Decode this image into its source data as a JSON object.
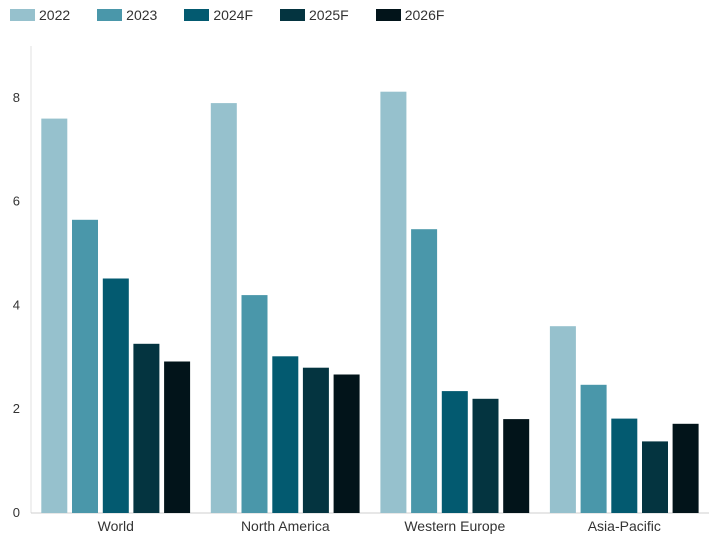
{
  "chart_data": {
    "type": "bar",
    "categories": [
      "World",
      "North America",
      "Western Europe",
      "Asia-Pacific"
    ],
    "series": [
      {
        "name": "2022",
        "color": "#96c1cd",
        "values": [
          7.6,
          7.9,
          8.12,
          3.6
        ]
      },
      {
        "name": "2023",
        "color": "#4a97aa",
        "values": [
          5.65,
          4.2,
          5.47,
          2.47
        ]
      },
      {
        "name": "2024F",
        "color": "#035a70",
        "values": [
          4.52,
          3.02,
          2.35,
          1.82
        ]
      },
      {
        "name": "2025F",
        "color": "#043440",
        "values": [
          3.26,
          2.8,
          2.2,
          1.38
        ]
      },
      {
        "name": "2026F",
        "color": "#02141a",
        "values": [
          2.92,
          2.67,
          1.81,
          1.72
        ]
      }
    ],
    "yticks": [
      "0",
      "2",
      "4",
      "6",
      "8"
    ],
    "ylim": [
      0,
      9
    ],
    "grid": false,
    "legend_position": "top-left"
  }
}
